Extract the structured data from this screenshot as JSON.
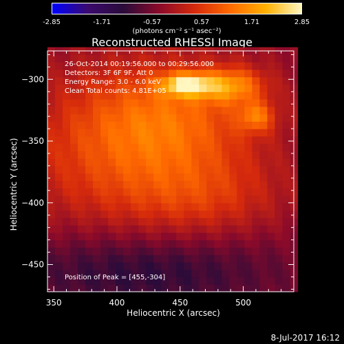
{
  "colorbar": {
    "ticks": [
      "-2.85",
      "-1.71",
      "-0.57",
      "0.57",
      "1.71",
      "2.85"
    ],
    "units": "(photons cm⁻² s⁻¹ asec⁻²)",
    "colors": [
      "#0000ff",
      "#3b0a6e",
      "#2a0b3a",
      "#8a0a2a",
      "#d62a0c",
      "#ff6a00",
      "#ffb000",
      "#fff6c0"
    ]
  },
  "chart_data": {
    "type": "heatmap",
    "title": "Reconstructed RHESSI Image",
    "xlabel": "Heliocentric X (arcsec)",
    "ylabel": "Heliocentric Y (arcsec)",
    "xlim": [
      345,
      540
    ],
    "ylim": [
      -472,
      -277
    ],
    "xticks": [
      350,
      400,
      450,
      500
    ],
    "yticks": [
      -300,
      -350,
      -400,
      -450
    ],
    "zlim": [
      -2.85,
      2.85
    ],
    "peak": [
      455,
      -304
    ],
    "annotations": {
      "time_range": "26-Oct-2014 00:19:56.000 to 00:29:56.000",
      "detectors": "Detectors: 3F 6F 9F, Att 0",
      "energy": "Energy Range: 3.0 - 6.0 keV",
      "method": "Clean    Total counts: 4.81E+05",
      "peak_label": "Position of Peak = [455,-304]"
    }
  },
  "footer": {
    "date": "8-Jul-2017 16:12"
  }
}
